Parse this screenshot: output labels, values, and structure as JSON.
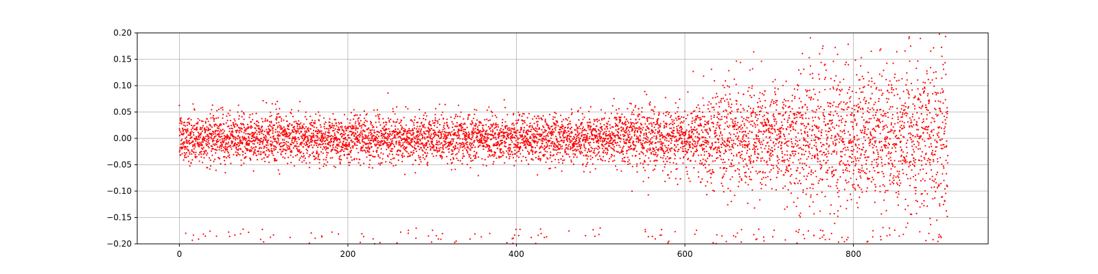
{
  "chart_data": {
    "type": "scatter",
    "title": "",
    "xlabel": "",
    "ylabel": "",
    "xlim": [
      -50,
      960
    ],
    "ylim": [
      -0.2,
      0.2
    ],
    "x_ticks": [
      0,
      200,
      400,
      600,
      800
    ],
    "x_tick_labels": [
      "0",
      "200",
      "400",
      "600",
      "800"
    ],
    "y_ticks": [
      0.2,
      0.15,
      0.1,
      0.05,
      0.0,
      -0.05,
      -0.1,
      -0.15,
      -0.2
    ],
    "y_tick_labels": [
      "0.20",
      "0.15",
      "0.10",
      "0.05",
      "0.00",
      "−0.05",
      "−0.10",
      "−0.15",
      "−0.20"
    ],
    "grid": true,
    "marker_color": "#ff0000",
    "series": [
      {
        "x_range": [
          0,
          912
        ],
        "y_center": 0.0,
        "description_points": [
          {
            "x": 0,
            "amplitude": 0.05
          },
          {
            "x": 200,
            "amplitude": 0.05
          },
          {
            "x": 400,
            "amplitude": 0.05
          },
          {
            "x": 500,
            "amplitude": 0.05
          },
          {
            "x": 550,
            "amplitude": 0.07
          },
          {
            "x": 600,
            "amplitude": 0.08
          },
          {
            "x": 650,
            "amplitude": 0.14
          },
          {
            "x": 700,
            "amplitude": 0.12
          },
          {
            "x": 750,
            "amplitude": 0.18
          },
          {
            "x": 800,
            "amplitude": 0.17
          },
          {
            "x": 850,
            "amplitude": 0.2
          },
          {
            "x": 900,
            "amplitude": 0.2
          },
          {
            "x": 912,
            "amplitude": 0.2
          }
        ]
      }
    ]
  }
}
